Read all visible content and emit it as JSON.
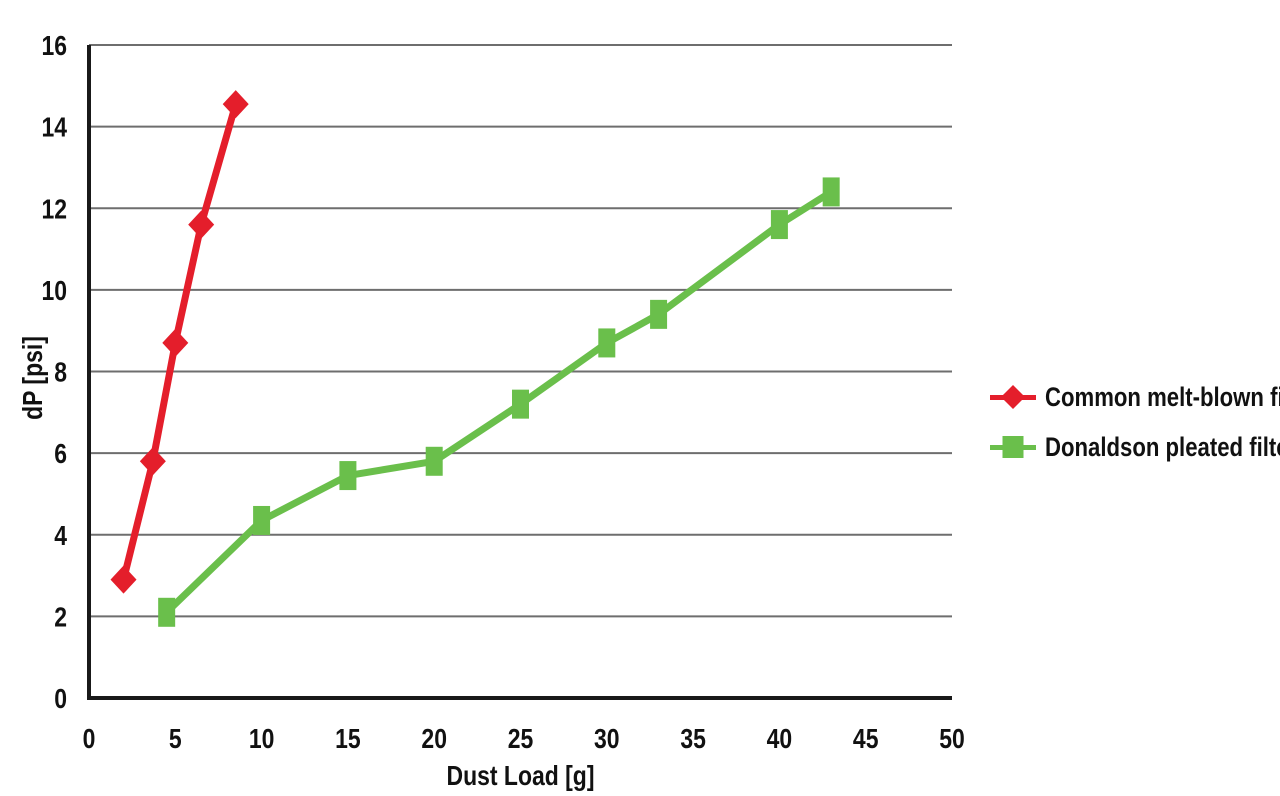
{
  "chart_data": {
    "type": "line",
    "title": "",
    "xlabel": "Dust Load [g]",
    "ylabel": "dP [psi]",
    "xlim": [
      0,
      50
    ],
    "ylim": [
      0,
      16
    ],
    "x_ticks": [
      0,
      5,
      10,
      15,
      20,
      25,
      30,
      35,
      40,
      45,
      50
    ],
    "y_ticks": [
      0,
      2,
      4,
      6,
      8,
      10,
      12,
      14,
      16
    ],
    "grid": "horizontal-only",
    "legend_position": "right-middle",
    "series": [
      {
        "name": "Common melt-blown filter",
        "color": "#e41e2b",
        "marker": "diamond",
        "points": [
          [
            2,
            2.9
          ],
          [
            3.7,
            5.8
          ],
          [
            5,
            8.7
          ],
          [
            6.5,
            11.6
          ],
          [
            8.5,
            14.55
          ]
        ]
      },
      {
        "name": "Donaldson pleated filter",
        "color": "#6abf4b",
        "marker": "square",
        "points": [
          [
            4.5,
            2.1
          ],
          [
            10,
            4.35
          ],
          [
            15,
            5.45
          ],
          [
            20,
            5.8
          ],
          [
            25,
            7.2
          ],
          [
            30,
            8.7
          ],
          [
            33,
            9.4
          ],
          [
            40,
            11.6
          ],
          [
            43,
            12.4
          ]
        ]
      }
    ],
    "colors": {
      "gridline": "#6e6e6e",
      "axis": "#191919",
      "text": "#111111",
      "background": "#ffffff"
    }
  }
}
